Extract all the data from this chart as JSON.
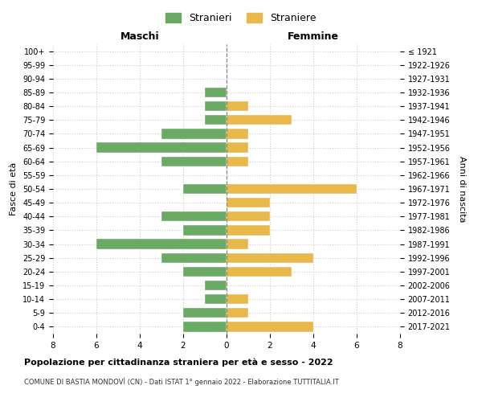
{
  "age_groups": [
    "0-4",
    "5-9",
    "10-14",
    "15-19",
    "20-24",
    "25-29",
    "30-34",
    "35-39",
    "40-44",
    "45-49",
    "50-54",
    "55-59",
    "60-64",
    "65-69",
    "70-74",
    "75-79",
    "80-84",
    "85-89",
    "90-94",
    "95-99",
    "100+"
  ],
  "birth_years": [
    "2017-2021",
    "2012-2016",
    "2007-2011",
    "2002-2006",
    "1997-2001",
    "1992-1996",
    "1987-1991",
    "1982-1986",
    "1977-1981",
    "1972-1976",
    "1967-1971",
    "1962-1966",
    "1957-1961",
    "1952-1956",
    "1947-1951",
    "1942-1946",
    "1937-1941",
    "1932-1936",
    "1927-1931",
    "1922-1926",
    "≤ 1921"
  ],
  "maschi": [
    2,
    2,
    1,
    1,
    2,
    3,
    6,
    2,
    3,
    0,
    2,
    0,
    3,
    6,
    3,
    1,
    1,
    1,
    0,
    0,
    0
  ],
  "femmine": [
    4,
    1,
    1,
    0,
    3,
    4,
    1,
    2,
    2,
    2,
    6,
    0,
    1,
    1,
    1,
    3,
    1,
    0,
    0,
    0,
    0
  ],
  "color_maschi": "#6aaa64",
  "color_femmine": "#e8b84b",
  "title": "Popolazione per cittadinanza straniera per età e sesso - 2022",
  "subtitle": "COMUNE DI BASTIA MONDOVÌ (CN) - Dati ISTAT 1° gennaio 2022 - Elaborazione TUTTITALIA.IT",
  "xlabel_maschi": "Maschi",
  "xlabel_femmine": "Femmine",
  "ylabel_left": "Fasce di età",
  "ylabel_right": "Anni di nascita",
  "legend_maschi": "Stranieri",
  "legend_femmine": "Straniere",
  "xlim": 8,
  "background_color": "#ffffff",
  "grid_color": "#cccccc"
}
